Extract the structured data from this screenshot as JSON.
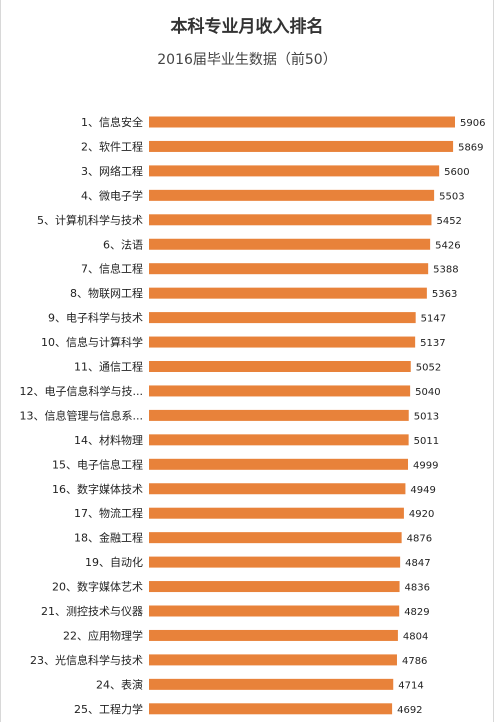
{
  "chart_data": {
    "type": "bar",
    "orientation": "horizontal",
    "title": "本科专业月收入排名",
    "subtitle": "2016届毕业生数据（前50）",
    "bar_color": "#E8823A",
    "categories": [
      "1、信息安全",
      "2、软件工程",
      "3、网络工程",
      "4、微电子学",
      "5、计算机科学与技术",
      "6、法语",
      "7、信息工程",
      "8、物联网工程",
      "9、电子科学与技术",
      "10、信息与计算科学",
      "11、通信工程",
      "12、电子信息科学与技...",
      "13、信息管理与信息系...",
      "14、材料物理",
      "15、电子信息工程",
      "16、数字媒体技术",
      "17、物流工程",
      "18、金融工程",
      "19、自动化",
      "20、数字媒体艺术",
      "21、测控技术与仪器",
      "22、应用物理学",
      "23、光信息科学与技术",
      "24、表演",
      "25、工程力学"
    ],
    "values": [
      5906,
      5869,
      5600,
      5503,
      5452,
      5426,
      5388,
      5363,
      5147,
      5137,
      5052,
      5040,
      5013,
      5011,
      4999,
      4949,
      4920,
      4876,
      4847,
      4836,
      4829,
      4804,
      4786,
      4714,
      4692
    ],
    "grid": false
  }
}
